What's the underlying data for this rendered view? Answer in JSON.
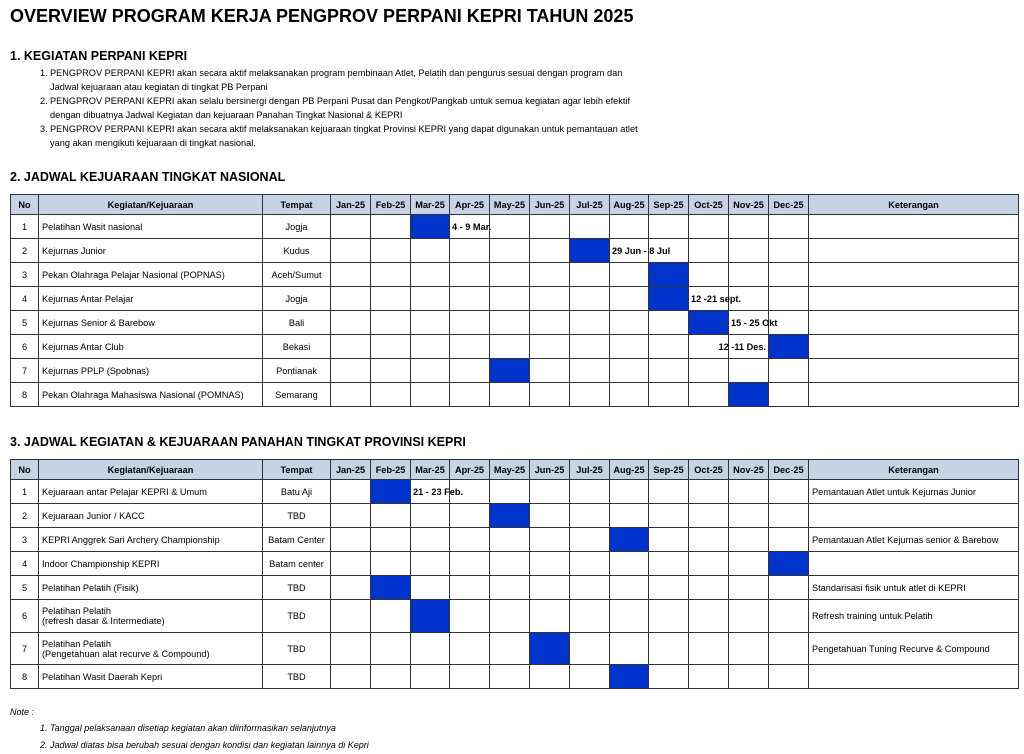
{
  "title": "OVERVIEW PROGRAM KERJA PENGPROV PERPANI KEPRI TAHUN 2025",
  "section1": {
    "heading": "1. KEGIATAN PERPANI KEPRI",
    "items": [
      "PENGPROV PERPANI KEPRI akan secara aktif melaksanakan program pembinaan Atlet, Pelatih dan pengurus sesuai dengan program dan Jadwal kejuaraan atau kegiatan di tingkat PB Perpani",
      "PENGPROV PERPANI KEPRI akan selalu bersinergi dengan PB Perpani Pusat dan Pengkot/Pangkab untuk semua kegiatan agar lebih efektif dengan dibuatnya Jadwal Kegiatan dan kejuaraan Panahan Tingkat Nasional & KEPRI",
      "PENGPROV PERPANI KEPRI akan secara aktif melaksanakan kejuaraan tingkat Provinsi KEPRI yang dapat digunakan untuk pemantauan atlet yang akan mengikuti kejuaraan di tingkat nasional."
    ]
  },
  "section2": {
    "heading": "2. JADWAL KEJUARAAN TINGKAT NASIONAL",
    "table": {
      "columns": [
        "No",
        "Kegiatan/Kejuaraan",
        "Tempat",
        "Jan-25",
        "Feb-25",
        "Mar-25",
        "Apr-25",
        "May-25",
        "Jun-25",
        "Jul-25",
        "Aug-25",
        "Sep-25",
        "Oct-25",
        "Nov-25",
        "Dec-25",
        "Keterangan"
      ],
      "rows": [
        {
          "no": "1",
          "activity": "Pelatihan Wasit nasional",
          "place": "Jogja",
          "month": "Mar-25",
          "date": "4 - 9 Mar."
        },
        {
          "no": "2",
          "activity": "Kejurnas Junior",
          "place": "Kudus",
          "month": "Jul-25",
          "date": "29 Jun - 8 Jul"
        },
        {
          "no": "3",
          "activity": "Pekan Olahraga Pelajar Nasional (POPNAS)",
          "place": "Aceh/Sumut",
          "month": "Sep-25"
        },
        {
          "no": "4",
          "activity": "Kejurnas Antar Pelajar",
          "place": "Jogja",
          "month": "Sep-25",
          "date": "12 -21 sept."
        },
        {
          "no": "5",
          "activity": "Kejurnas Senior & Barebow",
          "place": "Bali",
          "month": "Oct-25",
          "date": "15 - 25 Okt"
        },
        {
          "no": "6",
          "activity": "Kejurnas Antar Club",
          "place": "Bekasi",
          "month": "Dec-25",
          "date": "12 -11 Des."
        },
        {
          "no": "7",
          "activity": "Kejurnas PPLP (Spobnas)",
          "place": "Pontianak",
          "month": "May-25"
        },
        {
          "no": "8",
          "activity": "Pekan Olahraga Mahasiswa Nasional (POMNAS)",
          "place": "Semarang",
          "month": "Nov-25"
        }
      ]
    }
  },
  "section3": {
    "heading": "3. JADWAL KEGIATAN & KEJUARAAN PANAHAN TINGKAT PROVINSI KEPRI",
    "table": {
      "columns": [
        "No",
        "Kegiatan/Kejuaraan",
        "Tempat",
        "Jan-25",
        "Feb-25",
        "Mar-25",
        "Apr-25",
        "May-25",
        "Jun-25",
        "Jul-25",
        "Aug-25",
        "Sep-25",
        "Oct-25",
        "Nov-25",
        "Dec-25",
        "Keterangan"
      ],
      "rows": [
        {
          "no": "1",
          "activity": "Kejuaraan antar Pelajar KEPRI & Umum",
          "place": "Batu Aji",
          "month": "Feb-25",
          "date": "21 - 23 Feb.",
          "remark": "Pemantauan Atlet untuk Kejurnas Junior"
        },
        {
          "no": "2",
          "activity": "Kejuaraan Junior / KACC",
          "place": "TBD",
          "month": "May-25"
        },
        {
          "no": "3",
          "activity": "KEPRI Anggrek Sari Archery Championship",
          "place": "Batam Center",
          "month": "Aug-25",
          "remark": "Pemantauan Atlet Kejurnas senior & Barebow"
        },
        {
          "no": "4",
          "activity": "Indoor Championship KEPRI",
          "place": "Batam center",
          "month": "Dec-25"
        },
        {
          "no": "5",
          "activity": "Pelatihan Pelatih (Fisik)",
          "place": "TBD",
          "month": "Feb-25",
          "remark": "Standarisasi fisik untuk atlet di KEPRI"
        },
        {
          "no": "6",
          "activity": "Pelatihan Pelatih\n(refresh dasar & Intermediate)",
          "place": "TBD",
          "month": "Mar-25",
          "remark": "Refresh training untuk Pelatih"
        },
        {
          "no": "7",
          "activity": "Pelatihan Pelatih\n(Pengetahuan alat recurve & Compound)",
          "place": "TBD",
          "month": "Jun-25",
          "remark": "Pengetahuan Tuning Recurve & Compound"
        },
        {
          "no": "8",
          "activity": "Pelatihan Wasit Daerah Kepri",
          "place": "TBD",
          "month": "Aug-25"
        }
      ]
    }
  },
  "note": {
    "label": "Note :",
    "items": [
      "Tanggal pelaksanaan disetiap kegiatan akan diinformasikan selanjutnya",
      "Jadwal diatas bisa berubah sesuai dengan kondisi dan kegiatan lainnya di Kepri"
    ]
  }
}
